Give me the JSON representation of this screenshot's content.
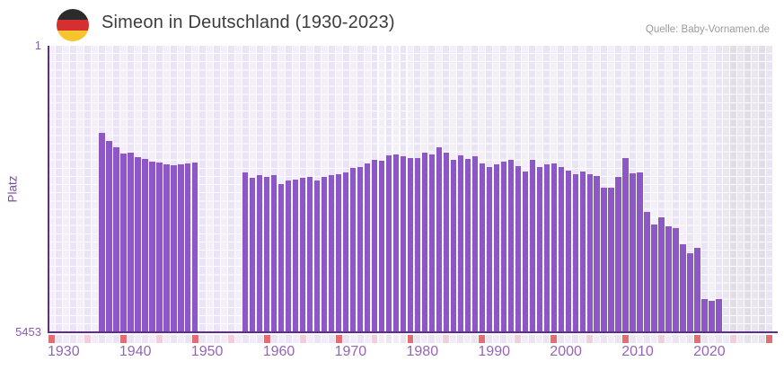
{
  "header": {
    "title": "Simeon in Deutschland (1930-2023)",
    "source": "Quelle: Baby-Vornamen.de",
    "flag_icon": "german-flag-icon"
  },
  "y_axis": {
    "label": "Platz",
    "top_tick": "1",
    "bottom_tick": "5453"
  },
  "x_axis": {
    "decade_labels": [
      "1930",
      "1940",
      "1950",
      "1960",
      "1970",
      "1980",
      "1990",
      "2000",
      "2010",
      "2020"
    ],
    "axis_start_year": 1930,
    "axis_end_year": 2030,
    "decade_mark_interval": 10,
    "half_decade_mark_interval": 5
  },
  "chart_data": {
    "type": "bar",
    "title": "Simeon in Deutschland (1930-2023)",
    "xlabel": "",
    "ylabel": "Platz",
    "ylim": [
      1,
      5453
    ],
    "y_axis_inverted": true,
    "x_range": [
      1930,
      2030
    ],
    "grid": true,
    "no_data_year_ranges": [
      [
        1930,
        1936
      ],
      [
        1951,
        1956
      ]
    ],
    "future_shaded_range": [
      2024,
      2030
    ],
    "points": [
      {
        "year": 1937,
        "platz": 1660
      },
      {
        "year": 1938,
        "platz": 1815
      },
      {
        "year": 1939,
        "platz": 1935
      },
      {
        "year": 1940,
        "platz": 2050
      },
      {
        "year": 1941,
        "platz": 2035
      },
      {
        "year": 1942,
        "platz": 2120
      },
      {
        "year": 1943,
        "platz": 2155
      },
      {
        "year": 1944,
        "platz": 2205
      },
      {
        "year": 1945,
        "platz": 2225
      },
      {
        "year": 1946,
        "platz": 2255
      },
      {
        "year": 1947,
        "platz": 2275
      },
      {
        "year": 1948,
        "platz": 2255
      },
      {
        "year": 1949,
        "platz": 2240
      },
      {
        "year": 1950,
        "platz": 2225
      },
      {
        "year": 1957,
        "platz": 2410
      },
      {
        "year": 1958,
        "platz": 2515
      },
      {
        "year": 1959,
        "platz": 2460
      },
      {
        "year": 1960,
        "platz": 2495
      },
      {
        "year": 1961,
        "platz": 2460
      },
      {
        "year": 1962,
        "platz": 2635
      },
      {
        "year": 1963,
        "platz": 2565
      },
      {
        "year": 1964,
        "platz": 2545
      },
      {
        "year": 1965,
        "platz": 2515
      },
      {
        "year": 1966,
        "platz": 2495
      },
      {
        "year": 1967,
        "platz": 2565
      },
      {
        "year": 1968,
        "platz": 2495
      },
      {
        "year": 1969,
        "platz": 2460
      },
      {
        "year": 1970,
        "platz": 2445
      },
      {
        "year": 1971,
        "platz": 2410
      },
      {
        "year": 1972,
        "platz": 2325
      },
      {
        "year": 1973,
        "platz": 2310
      },
      {
        "year": 1974,
        "platz": 2240
      },
      {
        "year": 1975,
        "platz": 2170
      },
      {
        "year": 1976,
        "platz": 2190
      },
      {
        "year": 1977,
        "platz": 2085
      },
      {
        "year": 1978,
        "platz": 2070
      },
      {
        "year": 1979,
        "platz": 2105
      },
      {
        "year": 1980,
        "platz": 2135
      },
      {
        "year": 1981,
        "platz": 2135
      },
      {
        "year": 1982,
        "platz": 2035
      },
      {
        "year": 1983,
        "platz": 2070
      },
      {
        "year": 1984,
        "platz": 1930
      },
      {
        "year": 1985,
        "platz": 2035
      },
      {
        "year": 1986,
        "platz": 2170
      },
      {
        "year": 1987,
        "platz": 2085
      },
      {
        "year": 1988,
        "platz": 2155
      },
      {
        "year": 1989,
        "platz": 2105
      },
      {
        "year": 1990,
        "platz": 2240
      },
      {
        "year": 1991,
        "platz": 2310
      },
      {
        "year": 1992,
        "platz": 2255
      },
      {
        "year": 1993,
        "platz": 2205
      },
      {
        "year": 1994,
        "platz": 2170
      },
      {
        "year": 1995,
        "platz": 2290
      },
      {
        "year": 1996,
        "platz": 2395
      },
      {
        "year": 1997,
        "platz": 2170
      },
      {
        "year": 1998,
        "platz": 2310
      },
      {
        "year": 1999,
        "platz": 2255
      },
      {
        "year": 2000,
        "platz": 2240
      },
      {
        "year": 2001,
        "platz": 2310
      },
      {
        "year": 2002,
        "platz": 2375
      },
      {
        "year": 2003,
        "platz": 2445
      },
      {
        "year": 2004,
        "platz": 2395
      },
      {
        "year": 2005,
        "platz": 2445
      },
      {
        "year": 2006,
        "platz": 2480
      },
      {
        "year": 2007,
        "platz": 2700
      },
      {
        "year": 2008,
        "platz": 2700
      },
      {
        "year": 2009,
        "platz": 2495
      },
      {
        "year": 2010,
        "platz": 2135
      },
      {
        "year": 2011,
        "platz": 2430
      },
      {
        "year": 2012,
        "platz": 2410
      },
      {
        "year": 2013,
        "platz": 3165
      },
      {
        "year": 2014,
        "platz": 3400
      },
      {
        "year": 2015,
        "platz": 3265
      },
      {
        "year": 2016,
        "platz": 3435
      },
      {
        "year": 2017,
        "platz": 3470
      },
      {
        "year": 2018,
        "platz": 3780
      },
      {
        "year": 2019,
        "platz": 3950
      },
      {
        "year": 2020,
        "platz": 3845
      },
      {
        "year": 2021,
        "platz": 4820
      },
      {
        "year": 2022,
        "platz": 4855
      },
      {
        "year": 2023,
        "platz": 4820
      }
    ]
  },
  "colors": {
    "bar": "#8d57c5",
    "axis": "#5c2e92",
    "plot_col_even": "#f3eefa",
    "plot_col_odd": "#eae4f5",
    "plot_col_future_even": "#e9e6f1",
    "plot_col_future_odd": "#e1ddeb",
    "strip_decade_mark": "#e26d75",
    "strip_half_decade_mark": "#f3cdd9",
    "strip_even": "#f1ecf8",
    "strip_odd": "#eae4f3",
    "strip_future_even": "#eceaf3",
    "strip_future_odd": "#e5e2ed",
    "tick_text": "#8a5bb0",
    "y_label_text": "#7d4ca8",
    "x_label_text": "#9565b5",
    "title_text": "#3c3c3c",
    "source_text": "#9b9b9b",
    "flag_black": "#2b2b2b",
    "flag_red": "#d62f2f",
    "flag_gold": "#f6c52d"
  }
}
